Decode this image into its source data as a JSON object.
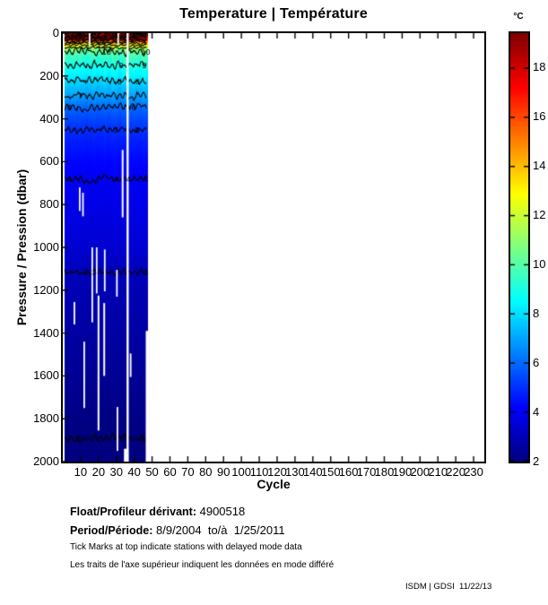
{
  "chart_data": {
    "type": "heatmap",
    "title": "Temperature | Température",
    "xlabel": "Cycle",
    "ylabel": "Pressure / Pression (dbar)",
    "xlim": [
      0,
      236
    ],
    "ylim": [
      0,
      2000
    ],
    "y_axis_reversed": true,
    "grid": false,
    "x_ticks": [
      10,
      20,
      30,
      40,
      50,
      60,
      70,
      80,
      90,
      100,
      110,
      120,
      130,
      140,
      150,
      160,
      170,
      180,
      190,
      200,
      210,
      220,
      230
    ],
    "y_ticks": [
      0,
      200,
      400,
      600,
      800,
      1000,
      1200,
      1400,
      1600,
      1800,
      2000
    ],
    "colorbar": {
      "label": "°C",
      "ticks": [
        2,
        4,
        6,
        8,
        10,
        12,
        14,
        16,
        18
      ],
      "range": [
        2,
        19.4
      ],
      "colormap": "jet",
      "position": "right"
    },
    "data_cycles": [
      1,
      47
    ],
    "profile": {
      "pressure": [
        0,
        10,
        20,
        30,
        40,
        50,
        60,
        70,
        80,
        100,
        125,
        150,
        175,
        200,
        250,
        300,
        350,
        400,
        450,
        500,
        600,
        700,
        800,
        900,
        1000,
        1100,
        1200,
        1400,
        1600,
        1800,
        1900,
        2000
      ],
      "temperature": [
        19.3,
        19.0,
        18.3,
        17.0,
        15.2,
        13.6,
        12.4,
        11.4,
        10.6,
        9.8,
        9.3,
        9.0,
        8.6,
        8.3,
        7.5,
        6.8,
        5.9,
        5.4,
        5.0,
        4.7,
        4.25,
        3.95,
        3.8,
        3.6,
        3.4,
        3.05,
        2.9,
        2.6,
        2.35,
        2.1,
        1.97,
        1.9
      ]
    },
    "contours": [
      {
        "level": 18,
        "pressure": 15,
        "label_cycles": []
      },
      {
        "level": 17,
        "pressure": 21,
        "label_cycles": []
      },
      {
        "level": 16,
        "pressure": 27,
        "label_cycles": []
      },
      {
        "level": 15,
        "pressure": 33,
        "label_cycles": []
      },
      {
        "level": 14,
        "pressure": 40,
        "label_cycles": []
      },
      {
        "level": 13,
        "pressure": 47,
        "label_cycles": []
      },
      {
        "level": 12,
        "pressure": 56,
        "label_cycles": [
          22
        ]
      },
      {
        "level": 11,
        "pressure": 68,
        "label_cycles": []
      },
      {
        "level": 10,
        "pressure": 84,
        "label_cycles": [
          25,
          47
        ]
      },
      {
        "level": 9,
        "pressure": 150,
        "label_cycles": [
          33,
          46
        ]
      },
      {
        "level": 8,
        "pressure": 222,
        "label_cycles": [
          32,
          42
        ]
      },
      {
        "level": 7,
        "pressure": 292,
        "label_cycles": [
          10
        ]
      },
      {
        "level": 6,
        "pressure": 347,
        "label_cycles": [
          4,
          40
        ]
      },
      {
        "level": 5,
        "pressure": 450,
        "label_cycles": [
          30,
          42
        ]
      },
      {
        "level": 4,
        "pressure": 680,
        "label_cycles": [
          4,
          30,
          37,
          47
        ]
      },
      {
        "level": 3,
        "pressure": 1115,
        "label_cycles": [
          13,
          18,
          47
        ]
      },
      {
        "level": 2,
        "pressure": 1890,
        "label_cycles": [
          9,
          34,
          45
        ]
      }
    ],
    "missing_data_gaps": [
      {
        "cycle": 36.3,
        "p_from": 0,
        "p_to": 2000,
        "width_cycles": 1.2
      },
      {
        "cycle": 15.0,
        "p_from": 0,
        "p_to": 60,
        "width_cycles": 0.9
      },
      {
        "cycle": 31.0,
        "p_from": 0,
        "p_to": 55,
        "width_cycles": 0.9
      },
      {
        "cycle": 9.5,
        "p_from": 720,
        "p_to": 830,
        "width_cycles": 0.9
      },
      {
        "cycle": 11.3,
        "p_from": 745,
        "p_to": 855,
        "width_cycles": 0.9
      },
      {
        "cycle": 33.5,
        "p_from": 545,
        "p_to": 860,
        "width_cycles": 1.0
      },
      {
        "cycle": 16.5,
        "p_from": 1000,
        "p_to": 1350,
        "width_cycles": 0.9
      },
      {
        "cycle": 19.0,
        "p_from": 1000,
        "p_to": 1215,
        "width_cycles": 0.9
      },
      {
        "cycle": 23.5,
        "p_from": 1010,
        "p_to": 1205,
        "width_cycles": 0.9
      },
      {
        "cycle": 30.3,
        "p_from": 1105,
        "p_to": 1230,
        "width_cycles": 0.9
      },
      {
        "cycle": 6.5,
        "p_from": 1255,
        "p_to": 1360,
        "width_cycles": 0.9
      },
      {
        "cycle": 12.0,
        "p_from": 1440,
        "p_to": 1750,
        "width_cycles": 0.9
      },
      {
        "cycle": 23.2,
        "p_from": 1260,
        "p_to": 1600,
        "width_cycles": 1.0
      },
      {
        "cycle": 20.0,
        "p_from": 1225,
        "p_to": 1855,
        "width_cycles": 1.0
      },
      {
        "cycle": 38.0,
        "p_from": 1495,
        "p_to": 1605,
        "width_cycles": 0.9
      },
      {
        "cycle": 30.6,
        "p_from": 1745,
        "p_to": 1950,
        "width_cycles": 0.9
      },
      {
        "cycle": 35.5,
        "p_from": 1940,
        "p_to": 2000,
        "width_cycles": 2.5
      },
      {
        "cycle": 47.2,
        "p_from": 1390,
        "p_to": 2000,
        "width_cycles": 1.5
      }
    ]
  },
  "footer": {
    "float_label": "Float/Profileur dérivant:",
    "float_value": " 4900518",
    "period_label": "Period/Période:",
    "period_value": " 8/9/2004  to/à  1/25/2011",
    "note_en": "Tick Marks at top indicate stations with delayed mode data",
    "note_fr": "Les traits de l'axe supérieur indiquent les données en mode différé",
    "credit": "ISDM | GDSI  11/22/13"
  }
}
